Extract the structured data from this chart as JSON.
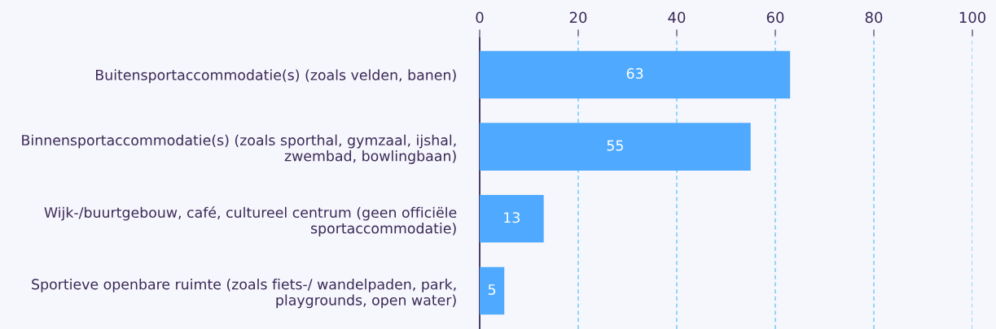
{
  "chart_data": {
    "type": "bar",
    "orientation": "horizontal",
    "categories": [
      "Buitensportaccommodatie(s) (zoals velden, banen)",
      "Binnensportaccommodatie(s) (zoals sporthal, gymzaal, ijshal,\nzwembad, bowlingbaan)",
      "Wijk-/buurtgebouw, café, cultureel centrum (geen officiële\nsportaccommodatie)",
      "Sportieve openbare ruimte (zoals fiets-/ wandelpaden, park,\nplaygrounds, open water)"
    ],
    "values": [
      63,
      55,
      13,
      5
    ],
    "color": "#4faaff",
    "data_labels": true,
    "xlim": [
      0,
      100
    ],
    "xticks": [
      0,
      20,
      40,
      60,
      80,
      100
    ],
    "grid": "x"
  }
}
